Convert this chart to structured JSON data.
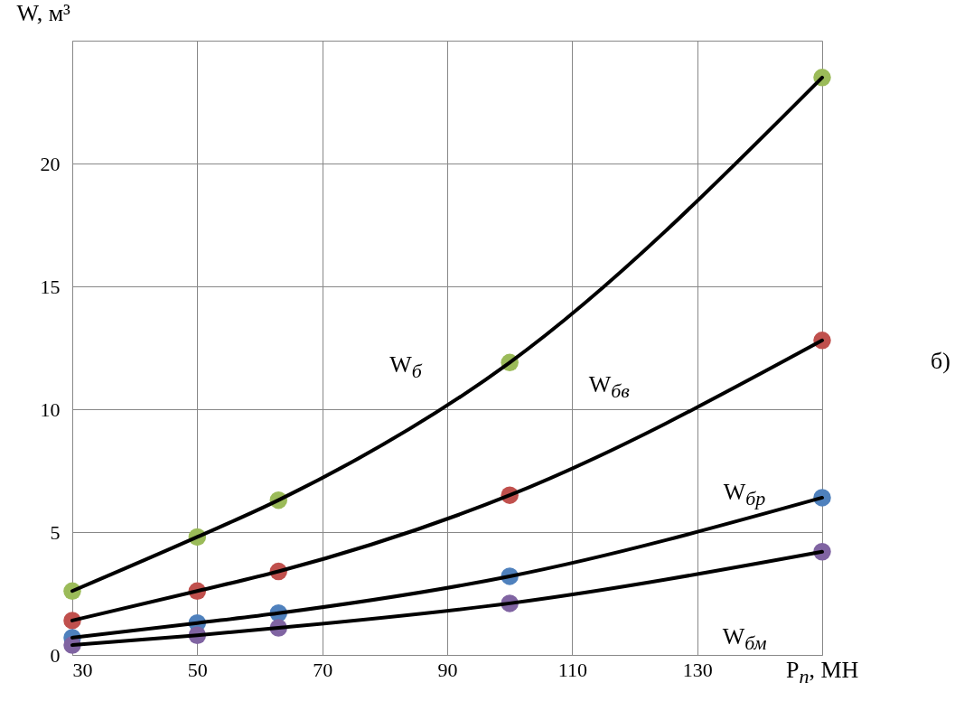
{
  "chart_data": {
    "type": "line",
    "xlabel": "P$_{n}$, МН",
    "ylabel": "W, м³",
    "x": [
      30,
      50,
      63,
      100,
      150
    ],
    "xlim": [
      30,
      150
    ],
    "xticks": [
      30,
      50,
      70,
      90,
      110,
      130,
      {
        "value": 150,
        "label": null
      }
    ],
    "ylim": [
      0,
      25
    ],
    "yticks": [
      0,
      5,
      10,
      15,
      20,
      {
        "value": 25,
        "label": null
      }
    ],
    "grid": true,
    "legend": false,
    "marker": "circle",
    "line_style": "solid",
    "series": [
      {
        "name": "W$_{б}$",
        "color": "#9bbb59",
        "values": [
          2.6,
          4.8,
          6.3,
          11.9,
          23.5
        ]
      },
      {
        "name": "W$_{бв}$",
        "color": "#c0504d",
        "values": [
          1.4,
          2.6,
          3.4,
          6.5,
          12.8
        ]
      },
      {
        "name": "W$_{бр}$",
        "color": "#4f81bd",
        "values": [
          0.7,
          1.3,
          1.7,
          3.2,
          6.4
        ]
      },
      {
        "name": "W$_{бм}$",
        "color": "#8064a2",
        "values": [
          0.4,
          0.8,
          1.1,
          2.1,
          4.2
        ]
      }
    ],
    "annotations": [
      "б)"
    ]
  }
}
